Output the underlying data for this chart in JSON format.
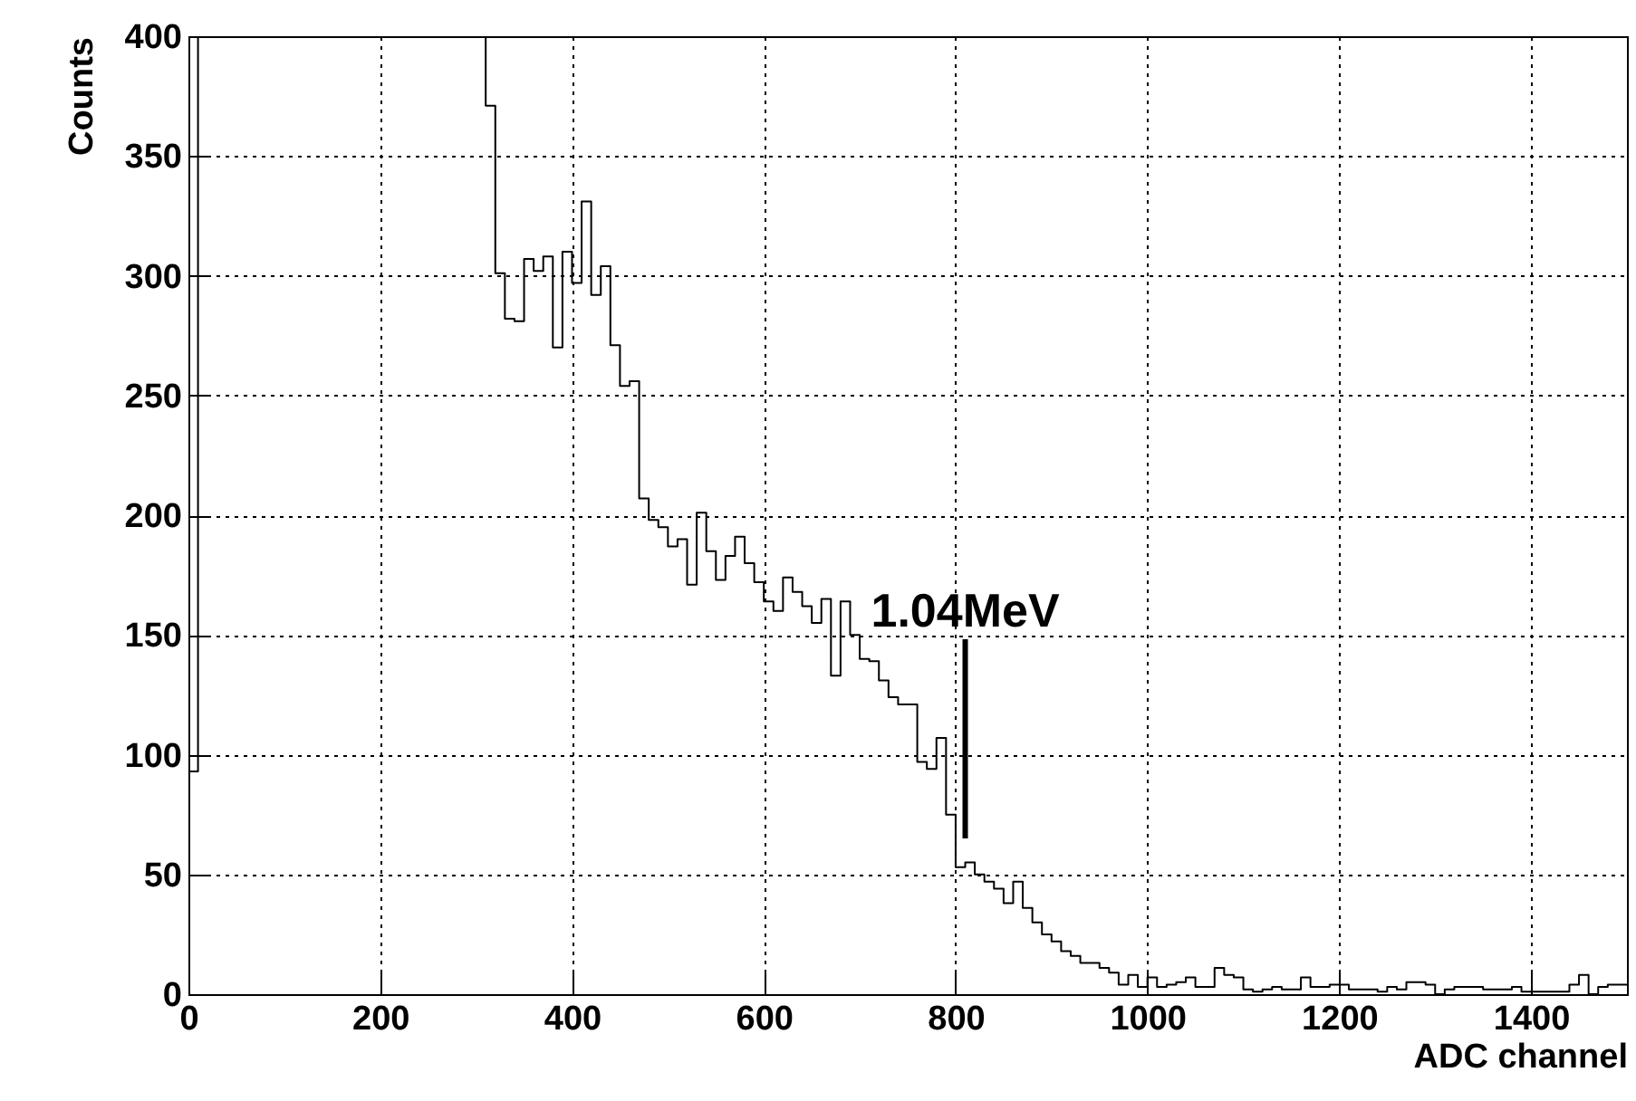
{
  "chart_data": {
    "type": "histogram",
    "xlabel": "ADC channel",
    "ylabel": "Counts",
    "color": "#000000",
    "bins": [
      0,
      10,
      20,
      30,
      40,
      50,
      60,
      70,
      80,
      90,
      100,
      110,
      120,
      130,
      140,
      150,
      160,
      170,
      180,
      190,
      200,
      210,
      220,
      230,
      240,
      250,
      260,
      270,
      280,
      290,
      300,
      310,
      320,
      330,
      340,
      350,
      360,
      370,
      380,
      390,
      400,
      410,
      420,
      430,
      440,
      450,
      460,
      470,
      480,
      490,
      500,
      510,
      520,
      530,
      540,
      550,
      560,
      570,
      580,
      590,
      600,
      610,
      620,
      630,
      640,
      650,
      660,
      670,
      680,
      690,
      700,
      710,
      720,
      730,
      740,
      750,
      760,
      770,
      780,
      790,
      800,
      810,
      820,
      830,
      840,
      850,
      860,
      870,
      880,
      890,
      900,
      910,
      920,
      930,
      940,
      950,
      960,
      970,
      980,
      990,
      1000,
      1010,
      1020,
      1030,
      1040,
      1050,
      1060,
      1070,
      1080,
      1090,
      1100,
      1110,
      1120,
      1130,
      1140,
      1150,
      1160,
      1170,
      1180,
      1190,
      1200,
      1210,
      1220,
      1230,
      1240,
      1250,
      1260,
      1270,
      1280,
      1290,
      1300,
      1310,
      1320,
      1330,
      1340,
      1350,
      1360,
      1370,
      1380,
      1390,
      1400,
      1410,
      1420,
      1430,
      1440,
      1450,
      1460,
      1470,
      1480,
      1490,
      1500
    ],
    "values": [
      93,
      400,
      400,
      400,
      400,
      400,
      400,
      400,
      400,
      400,
      400,
      400,
      400,
      400,
      400,
      400,
      400,
      400,
      400,
      400,
      400,
      400,
      400,
      400,
      400,
      400,
      400,
      400,
      400,
      400,
      400,
      371,
      301,
      282,
      281,
      307,
      302,
      308,
      270,
      310,
      297,
      331,
      292,
      304,
      271,
      254,
      256,
      207,
      198,
      195,
      187,
      190,
      171,
      201,
      185,
      173,
      183,
      191,
      180,
      172,
      164,
      160,
      174,
      168,
      162,
      155,
      165,
      133,
      164,
      150,
      140,
      139,
      131,
      124,
      121,
      121,
      97,
      94,
      107,
      75,
      53,
      55,
      50,
      47,
      44,
      38,
      47,
      36,
      30,
      25,
      22,
      18,
      16,
      13,
      13,
      11,
      9,
      4,
      8,
      3,
      7,
      3,
      4,
      5,
      7,
      3,
      3,
      11,
      8,
      7,
      2,
      1,
      2,
      3,
      2,
      2,
      7,
      3,
      3,
      4,
      4,
      2,
      2,
      2,
      1,
      3,
      2,
      5,
      5,
      4,
      0,
      2,
      3,
      3,
      3,
      2,
      2,
      2,
      3,
      1,
      1,
      1,
      1,
      1,
      4,
      8,
      0,
      3,
      4,
      4
    ],
    "xlim": [
      0,
      1500
    ],
    "xticks": [
      0,
      200,
      400,
      600,
      800,
      1000,
      1200,
      1400
    ],
    "ylim": [
      0,
      400
    ],
    "yticks": [
      0,
      50,
      100,
      150,
      200,
      250,
      300,
      350,
      400
    ],
    "grid": true,
    "ref_lines": [
      {
        "axis": "x",
        "value": 810,
        "label": "1.04MeV"
      }
    ]
  }
}
